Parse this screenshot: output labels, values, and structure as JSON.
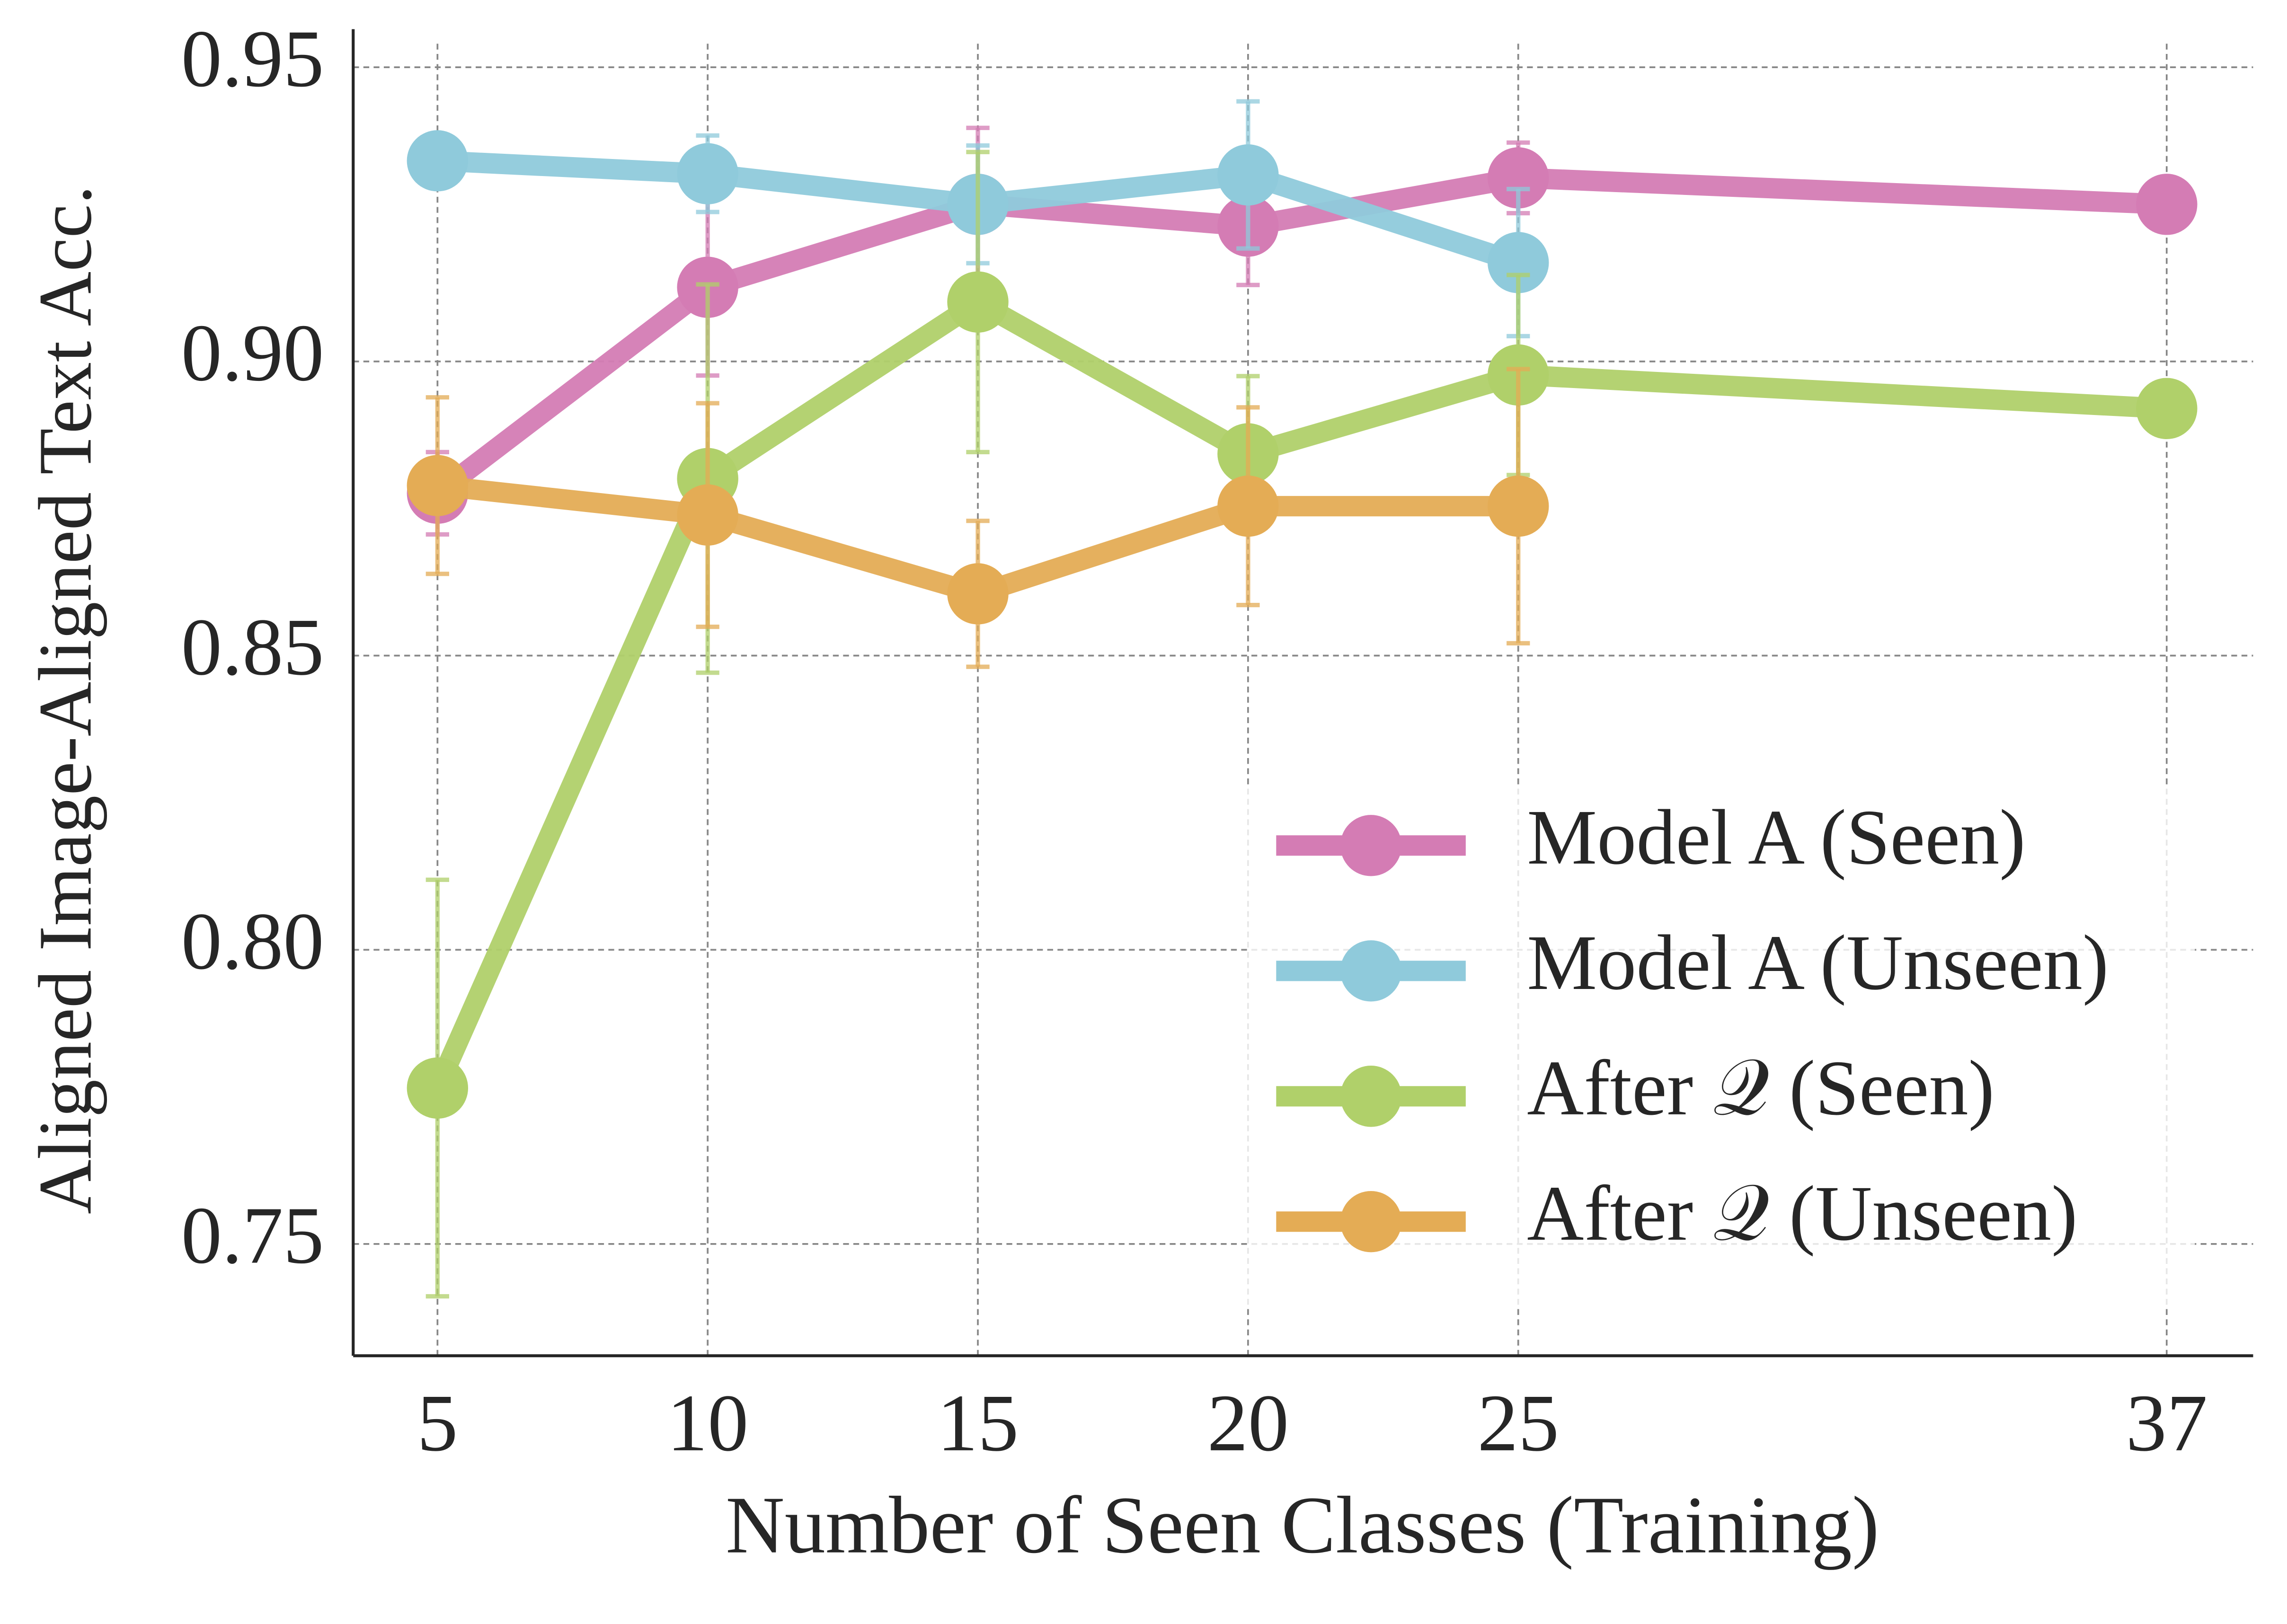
{
  "chart_data": {
    "type": "line",
    "xlabel": "Number of Seen Classes (Training)",
    "ylabel": "Aligned Image-Aligned Text Acc.",
    "xlim": [
      3.44,
      38.6
    ],
    "ylim": [
      0.731,
      0.954
    ],
    "xticks": [
      5,
      10,
      15,
      20,
      25,
      37
    ],
    "yticks": [
      {
        "value": 0.75,
        "label": "0.75"
      },
      {
        "value": 0.8,
        "label": "0.80"
      },
      {
        "value": 0.85,
        "label": "0.85"
      },
      {
        "value": 0.9,
        "label": "0.90"
      },
      {
        "value": 0.95,
        "label": "0.95"
      }
    ],
    "grid": true,
    "legend": "lower right",
    "series": [
      {
        "name": "Model A (Seen)",
        "color": "#d47cb4",
        "x": [
          5,
          10,
          15,
          20,
          25,
          37
        ],
        "values": [
          0.8776,
          0.9126,
          0.9267,
          0.923,
          0.9312,
          0.9267
        ],
        "errors": [
          0.007,
          0.015,
          0.013,
          0.01,
          0.006,
          null
        ]
      },
      {
        "name": "Model A (Unseen)",
        "color": "#8fcadb",
        "x": [
          5,
          10,
          15,
          20,
          25
        ],
        "values": [
          0.9341,
          0.9319,
          0.9267,
          0.9317,
          0.9168
        ],
        "errors": [
          0.002,
          0.0065,
          0.01,
          0.0125,
          0.0125
        ]
      },
      {
        "name": "After 𝒬 (Seen)",
        "color": "#b0d06a",
        "x": [
          5,
          10,
          15,
          20,
          25,
          37
        ],
        "values": [
          0.7765,
          0.8801,
          0.9101,
          0.8843,
          0.8977,
          0.892
        ],
        "errors": [
          0.0354,
          0.033,
          0.0255,
          0.0132,
          0.017,
          null
        ]
      },
      {
        "name": "After 𝒬 (Unseen)",
        "color": "#e4ac55",
        "x": [
          5,
          10,
          15,
          20,
          25
        ],
        "values": [
          0.8789,
          0.8739,
          0.8605,
          0.8754,
          0.8754
        ],
        "errors": [
          0.015,
          0.019,
          0.0124,
          0.0168,
          0.0233
        ]
      }
    ]
  }
}
